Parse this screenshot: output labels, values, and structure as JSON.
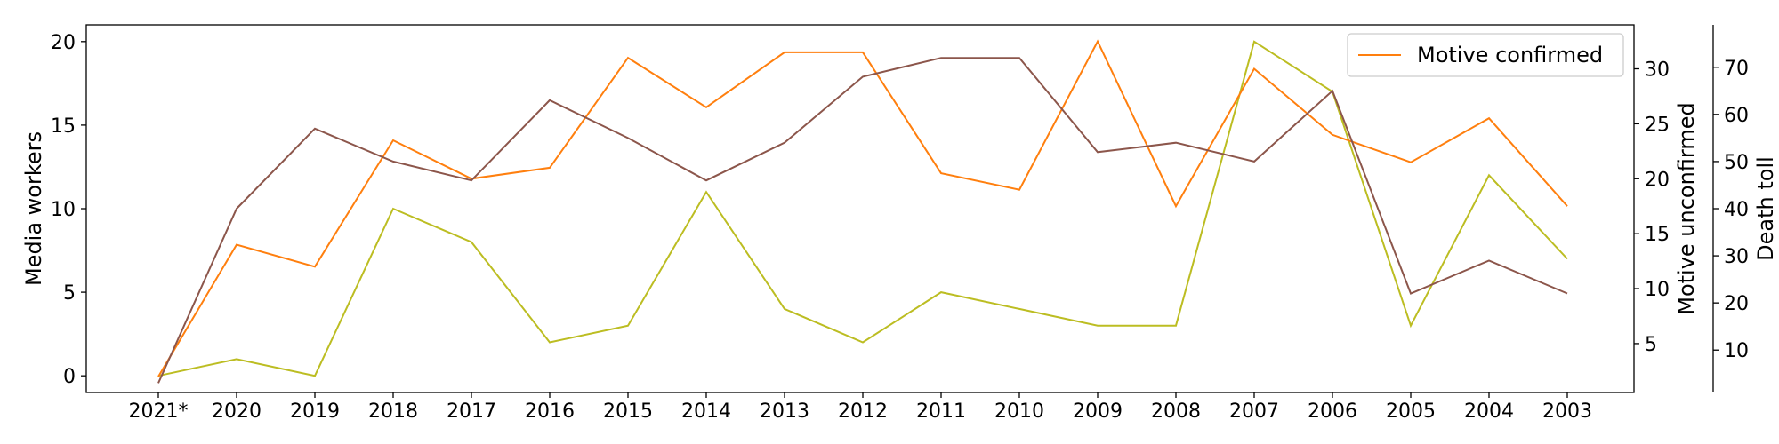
{
  "chart_data": {
    "type": "line",
    "categories": [
      "2021*",
      "2020",
      "2019",
      "2018",
      "2017",
      "2016",
      "2015",
      "2014",
      "2013",
      "2012",
      "2011",
      "2010",
      "2009",
      "2008",
      "2007",
      "2006",
      "2005",
      "2004",
      "2003"
    ],
    "series": [
      {
        "name": "",
        "axis": "left",
        "color": "#bcbd22",
        "values": [
          0,
          1,
          0,
          10,
          8,
          2,
          3,
          11,
          4,
          2,
          5,
          4,
          3,
          3,
          20,
          17,
          3,
          12,
          7
        ]
      },
      {
        "name": "Motive confirmed",
        "axis": "right1",
        "color": "#ff7f0e",
        "values": [
          2,
          14,
          12,
          23.5,
          20,
          21,
          31,
          26.5,
          31.5,
          31.5,
          20.5,
          19,
          32.5,
          17.5,
          30,
          24,
          21.5,
          25.5,
          17.5
        ]
      },
      {
        "name": "",
        "axis": "right2",
        "color": "#8c564b",
        "values": [
          3,
          40,
          57,
          50,
          46,
          63,
          55,
          46,
          54,
          68,
          72,
          72,
          52,
          54,
          50,
          65,
          22,
          29,
          22
        ]
      }
    ],
    "axes": {
      "left": {
        "label": "Media workers",
        "ylim": [
          -1.0,
          21.0
        ],
        "ticks": [
          0,
          5,
          10,
          15,
          20
        ]
      },
      "right1": {
        "label": "Motive unconfirmed",
        "ylim": [
          0.55,
          34.0
        ],
        "ticks": [
          5,
          10,
          15,
          20,
          25,
          30
        ]
      },
      "right2": {
        "label": "Death toll",
        "ylim": [
          1.0,
          79.0
        ],
        "ticks": [
          10,
          20,
          30,
          40,
          50,
          60,
          70
        ]
      }
    },
    "xlabel": "",
    "title": "",
    "legend": {
      "position": "top-right",
      "entries": [
        "Motive confirmed"
      ]
    },
    "grid": false
  }
}
